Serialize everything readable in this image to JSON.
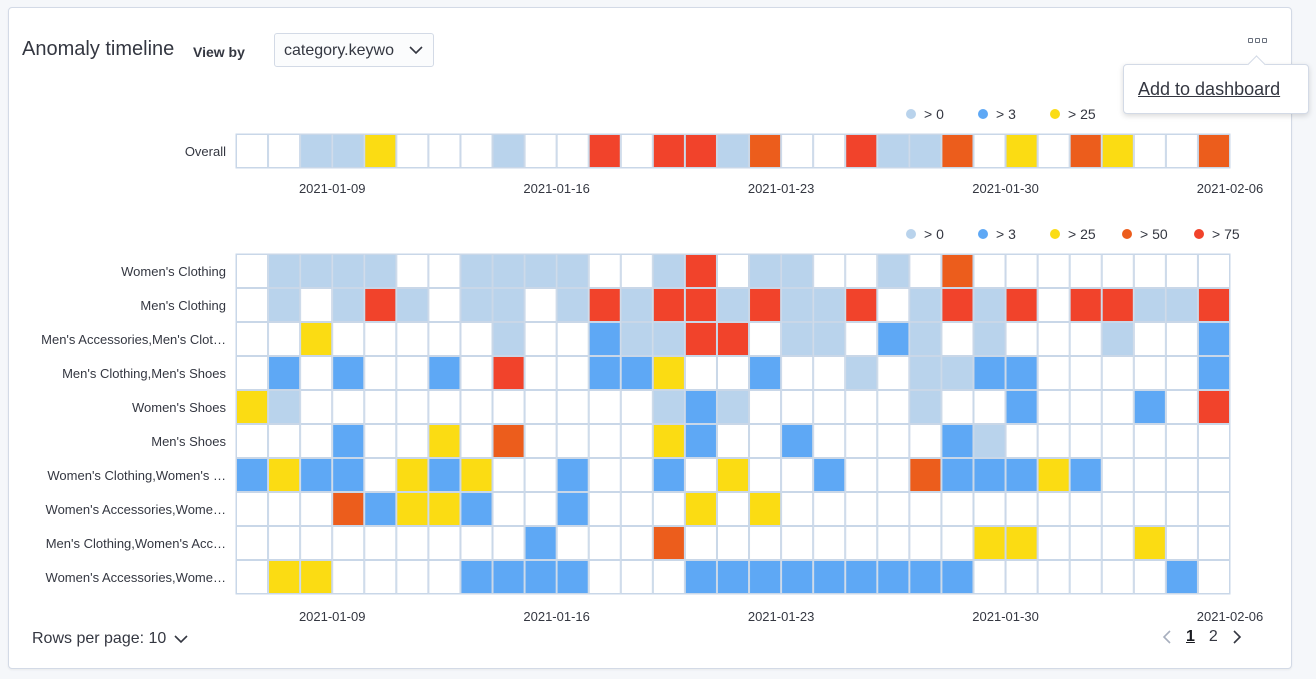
{
  "header": {
    "title": "Anomaly timeline",
    "view_by_label": "View by",
    "view_by_value": "category.keywo"
  },
  "menu": {
    "add_to_dashboard": "Add to dashboard"
  },
  "colors": {
    "none": "#ffffff",
    "gt0": "#b9d3ec",
    "gt3": "#5ea8f5",
    "gt25": "#fbdc13",
    "gt50": "#ec5d1c",
    "gt75": "#f1432b",
    "grid": "#c9d7e8"
  },
  "chart_data": [
    {
      "type": "heatmap",
      "name": "overall-swimlane",
      "rows": [
        "Overall"
      ],
      "x_labels": [
        "2021-01-09",
        "2021-01-16",
        "2021-01-23",
        "2021-01-30",
        "2021-02-06"
      ],
      "columns": 31,
      "legend": [
        {
          "label": "> 0",
          "level": 1
        },
        {
          "label": "> 3",
          "level": 2
        },
        {
          "label": "> 25",
          "level": 3
        }
      ],
      "legend_position": "top-right",
      "cells": [
        [
          0,
          0,
          1,
          1,
          3,
          0,
          0,
          0,
          1,
          0,
          0,
          5,
          0,
          5,
          5,
          1,
          4,
          0,
          0,
          5,
          1,
          1,
          4,
          0,
          3,
          0,
          4,
          3,
          0,
          0,
          4
        ]
      ]
    },
    {
      "type": "heatmap",
      "name": "view-by-swimlane",
      "rows": [
        "Women's Clothing",
        "Men's Clothing",
        "Men's Accessories,Men's Clot…",
        "Men's Clothing,Men's Shoes",
        "Women's Shoes",
        "Men's Shoes",
        "Women's Clothing,Women's …",
        "Women's Accessories,Wome…",
        "Men's Clothing,Women's Acc…",
        "Women's Accessories,Wome…"
      ],
      "x_labels": [
        "2021-01-09",
        "2021-01-16",
        "2021-01-23",
        "2021-01-30",
        "2021-02-06"
      ],
      "columns": 31,
      "legend": [
        {
          "label": "> 0",
          "level": 1
        },
        {
          "label": "> 3",
          "level": 2
        },
        {
          "label": "> 25",
          "level": 3
        },
        {
          "label": "> 50",
          "level": 4
        },
        {
          "label": "> 75",
          "level": 5
        }
      ],
      "legend_position": "top-right",
      "cells": [
        [
          0,
          1,
          1,
          1,
          1,
          0,
          0,
          1,
          1,
          1,
          1,
          0,
          0,
          1,
          5,
          0,
          1,
          1,
          0,
          0,
          1,
          0,
          4,
          0,
          0,
          0,
          0,
          0,
          0,
          0,
          0
        ],
        [
          0,
          1,
          0,
          1,
          5,
          1,
          0,
          1,
          1,
          0,
          1,
          5,
          1,
          5,
          5,
          1,
          5,
          1,
          1,
          5,
          0,
          1,
          5,
          1,
          5,
          0,
          5,
          5,
          1,
          1,
          5
        ],
        [
          0,
          0,
          3,
          0,
          0,
          0,
          0,
          0,
          1,
          0,
          0,
          2,
          1,
          1,
          5,
          5,
          0,
          1,
          1,
          0,
          2,
          1,
          0,
          1,
          0,
          0,
          0,
          1,
          0,
          0,
          2
        ],
        [
          0,
          2,
          0,
          2,
          0,
          0,
          2,
          0,
          5,
          0,
          0,
          2,
          2,
          3,
          0,
          0,
          2,
          0,
          0,
          1,
          0,
          1,
          1,
          2,
          2,
          0,
          0,
          0,
          0,
          0,
          2
        ],
        [
          3,
          1,
          0,
          0,
          0,
          0,
          0,
          0,
          0,
          0,
          0,
          0,
          0,
          1,
          2,
          1,
          0,
          0,
          0,
          0,
          0,
          1,
          0,
          0,
          2,
          0,
          0,
          0,
          2,
          0,
          5
        ],
        [
          0,
          0,
          0,
          2,
          0,
          0,
          3,
          0,
          4,
          0,
          0,
          0,
          0,
          3,
          2,
          0,
          0,
          2,
          0,
          0,
          0,
          0,
          2,
          1,
          0,
          0,
          0,
          0,
          0,
          0,
          0
        ],
        [
          2,
          3,
          2,
          2,
          0,
          3,
          2,
          3,
          0,
          0,
          2,
          0,
          0,
          2,
          0,
          3,
          0,
          0,
          2,
          0,
          0,
          4,
          2,
          2,
          2,
          3,
          2,
          0,
          0,
          0,
          0
        ],
        [
          0,
          0,
          0,
          4,
          2,
          3,
          3,
          2,
          0,
          0,
          2,
          0,
          0,
          0,
          3,
          0,
          3,
          0,
          0,
          0,
          0,
          0,
          0,
          0,
          0,
          0,
          0,
          0,
          0,
          0,
          0
        ],
        [
          0,
          0,
          0,
          0,
          0,
          0,
          0,
          0,
          0,
          2,
          0,
          0,
          0,
          4,
          0,
          0,
          0,
          0,
          0,
          0,
          0,
          0,
          0,
          3,
          3,
          0,
          0,
          0,
          3,
          0,
          0
        ],
        [
          0,
          3,
          3,
          0,
          0,
          0,
          0,
          2,
          2,
          2,
          2,
          0,
          0,
          0,
          2,
          2,
          2,
          2,
          2,
          2,
          2,
          2,
          2,
          0,
          0,
          0,
          0,
          0,
          0,
          2,
          0
        ]
      ]
    }
  ],
  "footer": {
    "rows_per_page": "Rows per page: 10",
    "pages": [
      "1",
      "2"
    ],
    "current_page": "1"
  }
}
